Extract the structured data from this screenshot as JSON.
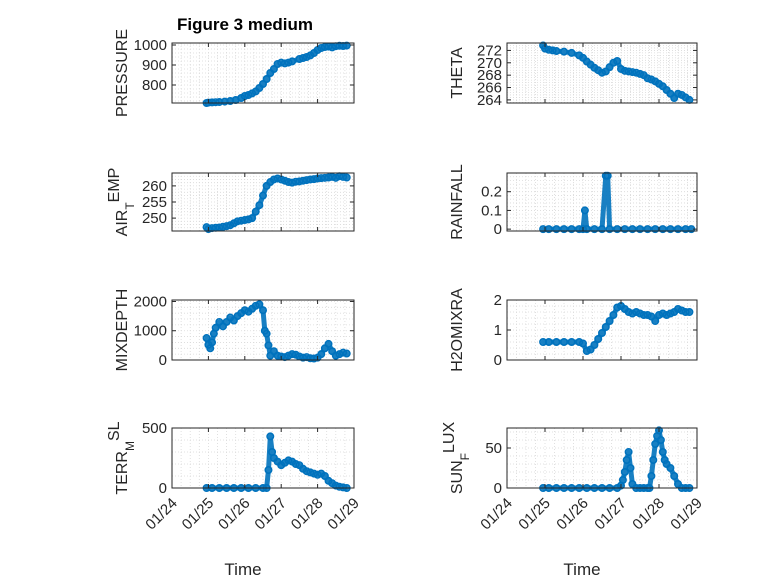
{
  "figure": {
    "title": "Figure 3 medium"
  },
  "colors": {
    "marker": "#0072BD",
    "grid": "#d9d9d9",
    "axis": "#262626"
  },
  "chart_data": [
    {
      "type": "scatter",
      "id": "pressure",
      "ylabel": "PRESSURE",
      "ylabel_sub": "",
      "ylim": [
        710,
        1010
      ],
      "yticks": [
        800,
        900,
        1000
      ],
      "xticks_shown": false,
      "x": [
        0.95,
        1.0,
        1.1,
        1.2,
        1.3,
        1.45,
        1.6,
        1.75,
        1.9,
        2.0,
        2.1,
        2.2,
        2.3,
        2.4,
        2.5,
        2.6,
        2.7,
        2.8,
        2.9,
        3.0,
        3.1,
        3.2,
        3.3,
        3.5,
        3.6,
        3.7,
        3.8,
        3.9,
        4.0,
        4.1,
        4.2,
        4.3,
        4.4,
        4.5,
        4.6,
        4.7,
        4.8
      ],
      "y": [
        710,
        712,
        713,
        714,
        715,
        717,
        720,
        725,
        735,
        745,
        750,
        758,
        768,
        785,
        805,
        830,
        860,
        880,
        905,
        912,
        908,
        912,
        918,
        930,
        935,
        940,
        948,
        960,
        975,
        985,
        990,
        992,
        988,
        994,
        996,
        995,
        997
      ]
    },
    {
      "type": "scatter",
      "id": "theta",
      "ylabel": "THETA",
      "ylabel_sub": "",
      "ylim": [
        263.5,
        273.2
      ],
      "yticks": [
        264,
        266,
        268,
        270,
        272
      ],
      "xticks_shown": false,
      "x": [
        0.95,
        1.0,
        1.1,
        1.2,
        1.3,
        1.5,
        1.7,
        1.9,
        2.0,
        2.1,
        2.2,
        2.3,
        2.4,
        2.5,
        2.6,
        2.7,
        2.8,
        2.9,
        3.0,
        3.1,
        3.2,
        3.3,
        3.4,
        3.5,
        3.6,
        3.7,
        3.8,
        3.9,
        4.0,
        4.1,
        4.2,
        4.3,
        4.4,
        4.5,
        4.6,
        4.7,
        4.8
      ],
      "y": [
        272.8,
        272.3,
        272.1,
        272.0,
        271.9,
        271.8,
        271.6,
        271.2,
        270.8,
        270.2,
        269.7,
        269.2,
        268.8,
        268.4,
        268.6,
        269.3,
        270.0,
        270.3,
        269.0,
        268.7,
        268.6,
        268.5,
        268.4,
        268.2,
        268.0,
        267.5,
        267.3,
        267.0,
        266.6,
        266.2,
        265.6,
        265.0,
        264.3,
        265.0,
        264.8,
        264.4,
        264.0
      ]
    },
    {
      "type": "scatter",
      "id": "air_temp",
      "ylabel": "AIR",
      "ylabel_sub": "T",
      "ylabel_suffix": "EMP",
      "ylim": [
        246,
        264
      ],
      "yticks": [
        250,
        255,
        260
      ],
      "xticks_shown": false,
      "x": [
        0.95,
        1.0,
        1.1,
        1.2,
        1.3,
        1.4,
        1.5,
        1.6,
        1.7,
        1.8,
        1.9,
        2.0,
        2.1,
        2.2,
        2.3,
        2.4,
        2.5,
        2.6,
        2.7,
        2.8,
        2.9,
        3.0,
        3.1,
        3.2,
        3.3,
        3.4,
        3.5,
        3.6,
        3.7,
        3.8,
        3.9,
        4.0,
        4.1,
        4.2,
        4.3,
        4.4,
        4.5,
        4.6,
        4.7,
        4.8
      ],
      "y": [
        247.2,
        246.6,
        246.9,
        247.0,
        247.1,
        247.3,
        247.5,
        247.8,
        248.4,
        249.0,
        249.2,
        249.4,
        249.6,
        250.0,
        252.0,
        254.0,
        257.0,
        260.0,
        261.2,
        262.0,
        262.3,
        262.0,
        261.6,
        261.2,
        261.0,
        261.3,
        261.4,
        261.6,
        261.8,
        262.0,
        262.1,
        262.3,
        262.4,
        262.5,
        262.6,
        262.8,
        262.5,
        263.0,
        262.8,
        262.6
      ]
    },
    {
      "type": "scatter",
      "id": "rainfall",
      "ylabel": "RAINFALL",
      "ylabel_sub": "",
      "ylim": [
        -0.01,
        0.3
      ],
      "yticks": [
        0,
        0.1,
        0.2
      ],
      "ytick_labels": [
        "0",
        "0.1",
        "0.2"
      ],
      "xticks_shown": false,
      "x": [
        0.95,
        1.1,
        1.3,
        1.5,
        1.7,
        1.9,
        2.0,
        2.05,
        2.1,
        2.3,
        2.5,
        2.6,
        2.65,
        2.7,
        2.9,
        3.1,
        3.3,
        3.5,
        3.7,
        3.9,
        4.1,
        4.3,
        4.5,
        4.7,
        4.85
      ],
      "y": [
        0,
        0,
        0,
        0,
        0,
        0,
        0,
        0.1,
        0,
        0,
        0,
        0.285,
        0.285,
        0,
        0,
        0,
        0,
        0,
        0,
        0,
        0,
        0,
        0,
        0,
        0
      ]
    },
    {
      "type": "scatter",
      "id": "mixdepth",
      "ylabel": "MIXDEPTH",
      "ylabel_sub": "",
      "ylim": [
        0,
        2050
      ],
      "yticks": [
        0,
        1000,
        2000
      ],
      "xticks_shown": false,
      "x": [
        0.95,
        1.0,
        1.05,
        1.1,
        1.15,
        1.2,
        1.3,
        1.4,
        1.5,
        1.6,
        1.7,
        1.8,
        1.9,
        2.0,
        2.1,
        2.2,
        2.3,
        2.4,
        2.5,
        2.55,
        2.6,
        2.65,
        2.7,
        2.8,
        2.9,
        3.0,
        3.1,
        3.2,
        3.3,
        3.4,
        3.5,
        3.6,
        3.7,
        3.8,
        3.9,
        4.0,
        4.1,
        4.2,
        4.3,
        4.4,
        4.5,
        4.6,
        4.7,
        4.8
      ],
      "y": [
        750,
        520,
        400,
        600,
        900,
        1100,
        1300,
        1150,
        1300,
        1450,
        1350,
        1500,
        1600,
        1700,
        1650,
        1750,
        1850,
        1900,
        1700,
        1000,
        900,
        500,
        150,
        300,
        150,
        120,
        100,
        150,
        200,
        180,
        120,
        80,
        100,
        60,
        50,
        80,
        200,
        400,
        550,
        300,
        150,
        200,
        250,
        220
      ]
    },
    {
      "type": "scatter",
      "id": "h2omixra",
      "ylabel": "H2OMIXRA",
      "ylabel_sub": "",
      "ylim": [
        0,
        2
      ],
      "yticks": [
        0,
        1,
        2
      ],
      "xticks_shown": false,
      "x": [
        0.95,
        1.1,
        1.3,
        1.5,
        1.7,
        1.9,
        2.0,
        2.1,
        2.2,
        2.3,
        2.4,
        2.5,
        2.6,
        2.7,
        2.8,
        2.9,
        3.0,
        3.1,
        3.2,
        3.3,
        3.4,
        3.5,
        3.6,
        3.7,
        3.8,
        3.9,
        4.0,
        4.1,
        4.2,
        4.3,
        4.4,
        4.5,
        4.6,
        4.7,
        4.8
      ],
      "y": [
        0.6,
        0.6,
        0.6,
        0.6,
        0.6,
        0.6,
        0.55,
        0.3,
        0.35,
        0.5,
        0.7,
        0.9,
        1.1,
        1.3,
        1.5,
        1.75,
        1.8,
        1.7,
        1.6,
        1.55,
        1.6,
        1.55,
        1.5,
        1.5,
        1.45,
        1.3,
        1.5,
        1.55,
        1.5,
        1.55,
        1.6,
        1.7,
        1.65,
        1.6,
        1.6
      ]
    },
    {
      "type": "scatter",
      "id": "terr_msl",
      "ylabel": "TERR",
      "ylabel_sub": "M",
      "ylabel_suffix": "SL",
      "ylim": [
        0,
        500
      ],
      "yticks": [
        0,
        500
      ],
      "xticks_shown": true,
      "x": [
        0.95,
        1.1,
        1.3,
        1.5,
        1.7,
        1.9,
        2.1,
        2.3,
        2.5,
        2.6,
        2.65,
        2.7,
        2.75,
        2.8,
        2.9,
        3.0,
        3.1,
        3.2,
        3.3,
        3.4,
        3.5,
        3.6,
        3.7,
        3.8,
        3.9,
        4.0,
        4.1,
        4.2,
        4.3,
        4.4,
        4.5,
        4.6,
        4.7,
        4.8
      ],
      "y": [
        0,
        0,
        0,
        0,
        0,
        0,
        0,
        0,
        0,
        0,
        150,
        430,
        300,
        250,
        220,
        190,
        210,
        230,
        220,
        200,
        190,
        160,
        140,
        130,
        120,
        110,
        120,
        100,
        60,
        40,
        20,
        10,
        5,
        0
      ]
    },
    {
      "type": "scatter",
      "id": "sunflux",
      "ylabel": "SUN",
      "ylabel_sub": "F",
      "ylabel_suffix": "LUX",
      "ylim": [
        0,
        75
      ],
      "yticks": [
        0,
        50
      ],
      "xticks_shown": true,
      "x": [
        0.95,
        1.1,
        1.3,
        1.5,
        1.7,
        1.9,
        2.1,
        2.3,
        2.5,
        2.7,
        2.9,
        3.0,
        3.05,
        3.1,
        3.15,
        3.2,
        3.25,
        3.3,
        3.4,
        3.5,
        3.6,
        3.7,
        3.75,
        3.8,
        3.85,
        3.9,
        3.95,
        4.0,
        4.05,
        4.1,
        4.15,
        4.2,
        4.3,
        4.4,
        4.5,
        4.6,
        4.7,
        4.8
      ],
      "y": [
        0,
        0,
        0,
        0,
        0,
        0,
        0,
        0,
        0,
        0,
        0,
        3,
        10,
        20,
        35,
        45,
        25,
        5,
        0,
        0,
        0,
        0,
        0,
        15,
        35,
        55,
        65,
        72,
        60,
        45,
        35,
        30,
        25,
        15,
        5,
        0,
        0,
        0
      ]
    }
  ],
  "x_axis": {
    "label": "Time",
    "xlim": [
      0,
      5
    ],
    "ticks": [
      0,
      1,
      2,
      3,
      4,
      5
    ],
    "tick_labels": [
      "01/24",
      "01/25",
      "01/26",
      "01/27",
      "01/28",
      "01/29"
    ]
  }
}
